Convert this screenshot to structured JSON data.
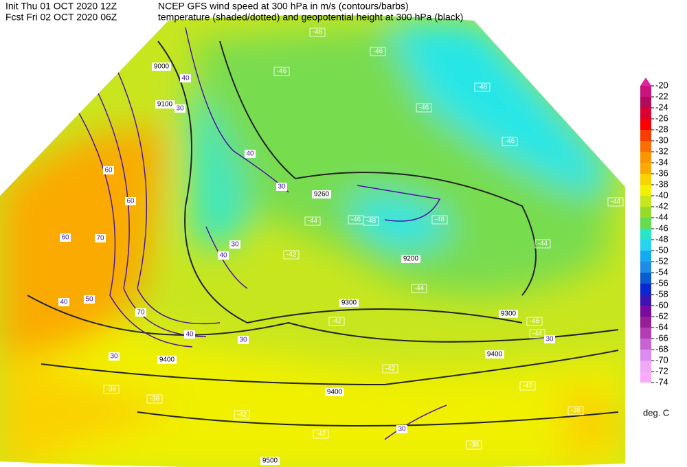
{
  "header": {
    "init": "Init  Thu 01 OCT 2020 12Z",
    "fcst": "Fcst Fri 02 OCT 2020 06Z",
    "title1": "NCEP GFS wind speed at 300 hPa in m/s (contours/barbs)",
    "title2": "temperature (shaded/dotted) and geopotential height at 300 hPa (black)"
  },
  "colorbar": {
    "labels": [
      "-20",
      "-22",
      "-24",
      "-26",
      "-28",
      "-30",
      "-32",
      "-34",
      "-36",
      "-38",
      "-40",
      "-42",
      "-44",
      "-46",
      "-48",
      "-50",
      "-52",
      "-54",
      "-56",
      "-58",
      "-60",
      "-62",
      "-64",
      "-66",
      "-68",
      "-70",
      "-72",
      "-74"
    ],
    "colors": [
      "#e61ea0",
      "#c8147d",
      "#b40a5a",
      "#dc0032",
      "#fa0000",
      "#fa3c00",
      "#fa6e00",
      "#fa9600",
      "#faaa00",
      "#fad200",
      "#f0f000",
      "#c8e61e",
      "#96dc28",
      "#64dc50",
      "#28e6c8",
      "#28d2f0",
      "#14aaf0",
      "#1e8ce6",
      "#0a5ad2",
      "#0a28d2",
      "#3c14b4",
      "#780aa0",
      "#961e96",
      "#b43cb4",
      "#c864d2",
      "#dc8cf0",
      "#f0aaf5",
      "#faaafa"
    ],
    "unit": "deg. C"
  },
  "map": {
    "height_labels": [
      "9000",
      "9100",
      "9200",
      "9300",
      "9300",
      "9400",
      "9400",
      "9400",
      "9500",
      "9260"
    ],
    "temperature_labels": [
      "-48",
      "-46",
      "-46",
      "-48",
      "-46",
      "-46",
      "-44",
      "-46",
      "-48",
      "-48",
      "-44",
      "-44",
      "-42",
      "-44",
      "-42",
      "-46",
      "-44",
      "-42",
      "-40",
      "-38",
      "-38",
      "-36",
      "-42",
      "-42",
      "-38"
    ],
    "wind_labels": [
      "30",
      "40",
      "30",
      "40",
      "30",
      "40",
      "60",
      "60",
      "70",
      "60",
      "50",
      "40",
      "70",
      "30",
      "40",
      "30",
      "30",
      "30"
    ]
  }
}
